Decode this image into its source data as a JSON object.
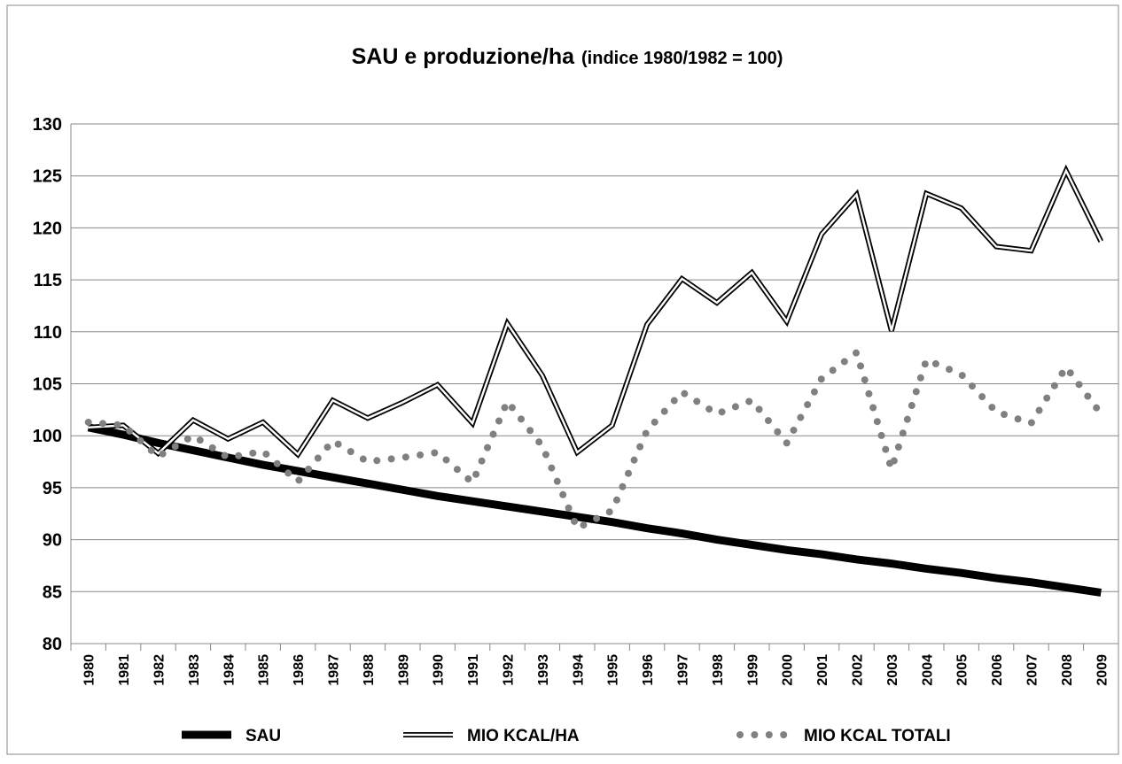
{
  "chart_data": {
    "type": "line",
    "title": "SAU e produzione/ha",
    "subtitle": "(indice 1980/1982 = 100)",
    "categories": [
      "1980",
      "1981",
      "1982",
      "1983",
      "1984",
      "1985",
      "1986",
      "1987",
      "1988",
      "1989",
      "1990",
      "1991",
      "1992",
      "1993",
      "1994",
      "1995",
      "1996",
      "1997",
      "1998",
      "1999",
      "2000",
      "2001",
      "2002",
      "2003",
      "2004",
      "2005",
      "2006",
      "2007",
      "2008",
      "2009"
    ],
    "series": [
      {
        "name": "SAU",
        "color": "#000000",
        "style": "solid",
        "values": [
          100.8,
          100.1,
          99.3,
          98.6,
          97.9,
          97.2,
          96.6,
          96.0,
          95.4,
          94.8,
          94.2,
          93.7,
          93.2,
          92.7,
          92.2,
          91.7,
          91.1,
          90.6,
          90.0,
          89.5,
          89.0,
          88.6,
          88.1,
          87.7,
          87.2,
          86.8,
          86.3,
          85.9,
          85.4,
          84.9
        ]
      },
      {
        "name": "MIO KCAL/HA",
        "color": "#000000",
        "style": "double",
        "values": [
          100.8,
          101.0,
          98.3,
          101.5,
          99.7,
          101.3,
          98.2,
          103.4,
          101.7,
          103.2,
          104.9,
          101.2,
          110.8,
          105.8,
          98.4,
          101.0,
          110.7,
          115.1,
          112.8,
          115.7,
          111.0,
          119.4,
          123.2,
          110.1,
          123.3,
          121.9,
          118.2,
          117.8,
          125.5,
          118.7
        ]
      },
      {
        "name": "MIO KCAL TOTALI",
        "color": "#808080",
        "style": "dotted",
        "values": [
          101.3,
          101.0,
          98.0,
          100.0,
          97.9,
          98.5,
          95.6,
          99.5,
          97.5,
          97.9,
          98.4,
          95.5,
          103.3,
          99.0,
          91.1,
          92.8,
          100.5,
          104.2,
          102.1,
          103.4,
          99.3,
          105.5,
          108.0,
          96.8,
          107.3,
          105.9,
          102.3,
          101.2,
          106.6,
          102.1
        ]
      }
    ],
    "ylim": [
      80,
      130
    ],
    "yticks": [
      80,
      85,
      90,
      95,
      100,
      105,
      110,
      115,
      120,
      125,
      130
    ],
    "grid": true,
    "legend": "bottom"
  }
}
